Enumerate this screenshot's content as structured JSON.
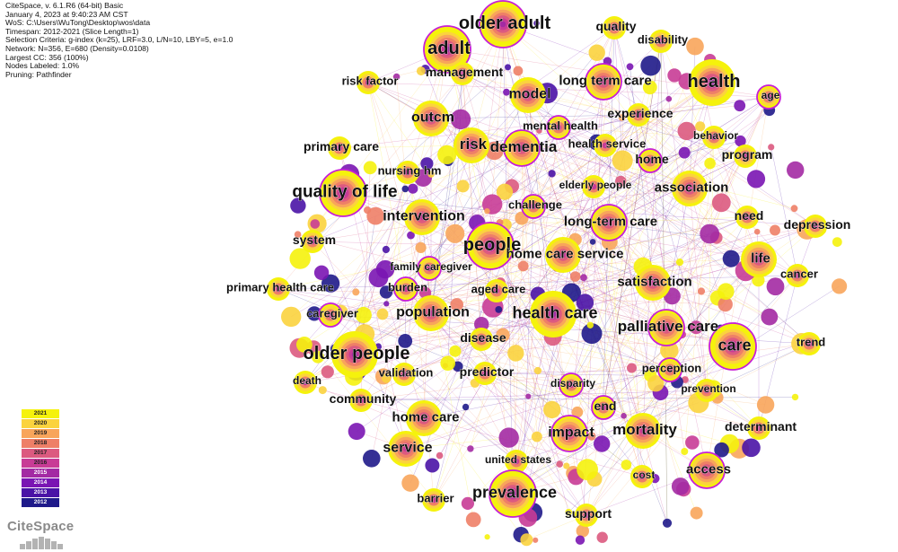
{
  "header": {
    "lines": [
      "CiteSpace, v. 6.1.R6 (64-bit) Basic",
      "January 4, 2023 at 9:40:23 AM CST",
      "WoS: C:\\Users\\WuTong\\Desktop\\wos\\data",
      "Timespan: 2012-2021 (Slice Length=1)",
      "Selection Criteria: g-index (k=25), LRF=3.0, L/N=10, LBY=5, e=1.0",
      "Network: N=356, E=680 (Density=0.0108)",
      "Largest CC: 356 (100%)",
      "Nodes Labeled: 1.0%",
      "Pruning: Pathfinder"
    ]
  },
  "legend": {
    "years": [
      "2021",
      "2020",
      "2019",
      "2018",
      "2017",
      "2016",
      "2015",
      "2014",
      "2013",
      "2012"
    ],
    "colors": [
      "#f5f20c",
      "#fbd33e",
      "#f8a55b",
      "#ee7f67",
      "#dc5a80",
      "#c83c96",
      "#a32aa3",
      "#7a15b3",
      "#4a13a6",
      "#1f1a8a"
    ]
  },
  "logo": {
    "text": "CiteSpace"
  },
  "keywords": [
    {
      "label": "older adult",
      "size": 20,
      "cls": "large",
      "anchor": "start"
    },
    {
      "label": "quality",
      "size": 14,
      "cls": "small"
    },
    {
      "label": "disability",
      "size": 13,
      "cls": "small"
    },
    {
      "label": "adult",
      "size": 20,
      "cls": "large"
    },
    {
      "label": "management",
      "size": 14,
      "cls": "small"
    },
    {
      "label": "health",
      "size": 20,
      "cls": "large"
    },
    {
      "label": "long term care",
      "size": 15,
      "cls": "medium"
    },
    {
      "label": "risk factor",
      "size": 13,
      "cls": "small"
    },
    {
      "label": "model",
      "size": 16,
      "cls": "medium"
    },
    {
      "label": "age",
      "size": 12,
      "cls": "small"
    },
    {
      "label": "experience",
      "size": 14,
      "cls": "small"
    },
    {
      "label": "outcm",
      "size": 16,
      "cls": "medium"
    },
    {
      "label": "mental health",
      "size": 13,
      "cls": "small"
    },
    {
      "label": "risk",
      "size": 17,
      "cls": "medium"
    },
    {
      "label": "primary care",
      "size": 14,
      "cls": "small"
    },
    {
      "label": "dementia",
      "size": 17,
      "cls": "medium"
    },
    {
      "label": "health service",
      "size": 13,
      "cls": "small"
    },
    {
      "label": "behavior",
      "size": 12,
      "cls": "small"
    },
    {
      "label": "home",
      "size": 14,
      "cls": "small"
    },
    {
      "label": "program",
      "size": 14,
      "cls": "small"
    },
    {
      "label": "nursing hm",
      "size": 13,
      "cls": "small"
    },
    {
      "label": "quality of life",
      "size": 19,
      "cls": "large"
    },
    {
      "label": "elderly people",
      "size": 12,
      "cls": "small"
    },
    {
      "label": "association",
      "size": 15,
      "cls": "medium"
    },
    {
      "label": "challenge",
      "size": 13,
      "cls": "small"
    },
    {
      "label": "intervention",
      "size": 16,
      "cls": "medium"
    },
    {
      "label": "need",
      "size": 14,
      "cls": "small"
    },
    {
      "label": "long-term care",
      "size": 15,
      "cls": "medium"
    },
    {
      "label": "depression",
      "size": 14,
      "cls": "small"
    },
    {
      "label": "system",
      "size": 14,
      "cls": "small"
    },
    {
      "label": "people",
      "size": 20,
      "cls": "large"
    },
    {
      "label": "home care service",
      "size": 15,
      "cls": "medium"
    },
    {
      "label": "life",
      "size": 15,
      "cls": "medium"
    },
    {
      "label": "family caregiver",
      "size": 12,
      "cls": "small"
    },
    {
      "label": "cancer",
      "size": 13,
      "cls": "small"
    },
    {
      "label": "primary health care",
      "size": 13,
      "cls": "small"
    },
    {
      "label": "burden",
      "size": 13,
      "cls": "small"
    },
    {
      "label": "aged care",
      "size": 13,
      "cls": "small"
    },
    {
      "label": "satisfaction",
      "size": 15,
      "cls": "medium"
    },
    {
      "label": "caregiver",
      "size": 13,
      "cls": "small"
    },
    {
      "label": "population",
      "size": 16,
      "cls": "medium"
    },
    {
      "label": "health care",
      "size": 18,
      "cls": "large"
    },
    {
      "label": "palliative care",
      "size": 17,
      "cls": "medium"
    },
    {
      "label": "disease",
      "size": 14,
      "cls": "small"
    },
    {
      "label": "older people",
      "size": 20,
      "cls": "large"
    },
    {
      "label": "care",
      "size": 18,
      "cls": "large"
    },
    {
      "label": "trend",
      "size": 13,
      "cls": "small"
    },
    {
      "label": "predictor",
      "size": 14,
      "cls": "small"
    },
    {
      "label": "perception",
      "size": 13,
      "cls": "small"
    },
    {
      "label": "validation",
      "size": 13,
      "cls": "small"
    },
    {
      "label": "death",
      "size": 12,
      "cls": "small"
    },
    {
      "label": "disparity",
      "size": 12,
      "cls": "small"
    },
    {
      "label": "prevention",
      "size": 12,
      "cls": "small"
    },
    {
      "label": "community",
      "size": 14,
      "cls": "small"
    },
    {
      "label": "end",
      "size": 14,
      "cls": "small"
    },
    {
      "label": "determinant",
      "size": 14,
      "cls": "small"
    },
    {
      "label": "home care",
      "size": 15,
      "cls": "medium"
    },
    {
      "label": "impact",
      "size": 16,
      "cls": "medium"
    },
    {
      "label": "mortality",
      "size": 17,
      "cls": "medium"
    },
    {
      "label": "service",
      "size": 16,
      "cls": "medium"
    },
    {
      "label": "access",
      "size": 15,
      "cls": "medium"
    },
    {
      "label": "united states",
      "size": 12,
      "cls": "small"
    },
    {
      "label": "cost",
      "size": 12,
      "cls": "small"
    },
    {
      "label": "prevalence",
      "size": 18,
      "cls": "large"
    },
    {
      "label": "barrier",
      "size": 13,
      "cls": "small"
    },
    {
      "label": "support",
      "size": 14,
      "cls": "small"
    }
  ]
}
